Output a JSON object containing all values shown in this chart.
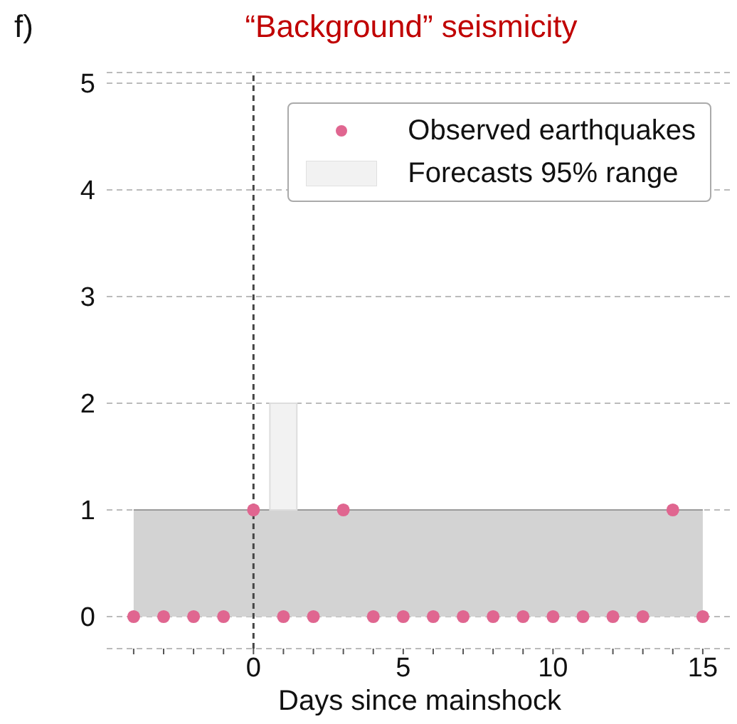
{
  "chart_data": {
    "type": "scatter",
    "title": "“Background” seismicity",
    "annotations": [
      "f)"
    ],
    "xlabel": "Days since mainshock",
    "series": [
      {
        "type": "area",
        "color": "#d3d3d3",
        "x": [
          -4,
          15
        ],
        "values": [
          1,
          1
        ]
      },
      {
        "type": "bar",
        "name": "Forecasts 95% range",
        "color": "#f2f2f2",
        "x": [
          1
        ],
        "base": [
          1
        ],
        "values": [
          1
        ]
      },
      {
        "name": "Observed earthquakes",
        "color": "#e06690",
        "marker": "circle",
        "x": [
          -4,
          -3,
          -2,
          -1,
          0,
          1,
          2,
          3,
          4,
          5,
          6,
          7,
          8,
          9,
          10,
          11,
          12,
          13,
          14,
          15
        ],
        "values": [
          0,
          0,
          0,
          0,
          1,
          0,
          0,
          1,
          0,
          0,
          0,
          0,
          0,
          0,
          0,
          0,
          0,
          0,
          1,
          0
        ]
      }
    ],
    "xlim": [
      -4.9,
      16
    ],
    "xticks": [
      {
        "value": -4,
        "label": null
      },
      {
        "value": -3,
        "label": null
      },
      {
        "value": -2,
        "label": null
      },
      {
        "value": -1,
        "label": null
      },
      0,
      {
        "value": 1,
        "label": null
      },
      {
        "value": 2,
        "label": null
      },
      {
        "value": 3,
        "label": null
      },
      {
        "value": 4,
        "label": null
      },
      5,
      {
        "value": 6,
        "label": null
      },
      {
        "value": 7,
        "label": null
      },
      {
        "value": 8,
        "label": null
      },
      {
        "value": 9,
        "label": null
      },
      10,
      {
        "value": 11,
        "label": null
      },
      {
        "value": 12,
        "label": null
      },
      {
        "value": 13,
        "label": null
      },
      {
        "value": 14,
        "label": null
      },
      15
    ],
    "ylim": [
      -0.3,
      5.1
    ],
    "yticks": [
      0,
      1,
      2,
      3,
      4,
      5
    ],
    "ref_lines": [
      {
        "axis": "x",
        "value": 0,
        "color": "#444444",
        "line_style": "dashed"
      }
    ],
    "grid": "y",
    "legend": "top right"
  }
}
